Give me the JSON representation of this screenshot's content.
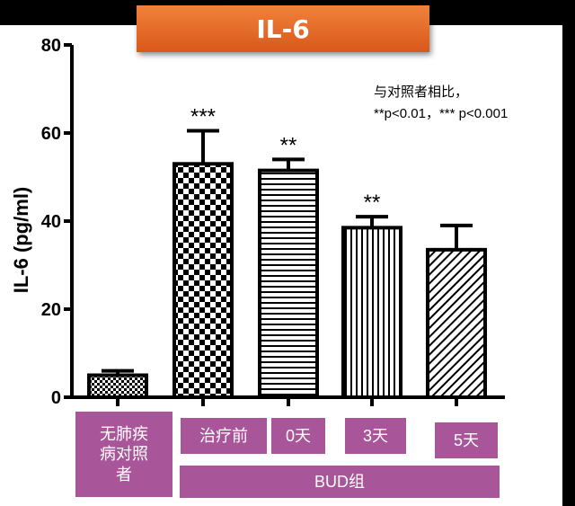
{
  "title": "IL-6",
  "note": {
    "line1": "与对照者相比，",
    "line2": "**p<0.01，*** p<0.001"
  },
  "group_label": "BUD组",
  "colors": {
    "title_bg": "#e86a2a",
    "label_bg": "#a8559a",
    "bar": "#000000"
  },
  "chart_data": {
    "type": "bar",
    "ylabel": "IL-6 (pg/ml)",
    "ylim": [
      0,
      80
    ],
    "yticks": [
      "0",
      "20",
      "40",
      "60",
      "80"
    ],
    "grid": false,
    "categories": [
      "无肺疾\n病对照\n者",
      "治疗前",
      "0天",
      "3天",
      "5天"
    ],
    "values": [
      5,
      53,
      51.5,
      38.5,
      33.5
    ],
    "errors": [
      1,
      7.5,
      2.5,
      2.5,
      5.5
    ],
    "significance": [
      "",
      "***",
      "**",
      "**",
      ""
    ],
    "patterns": [
      "dots",
      "checker",
      "horizontal",
      "vertical",
      "diagonal"
    ]
  }
}
